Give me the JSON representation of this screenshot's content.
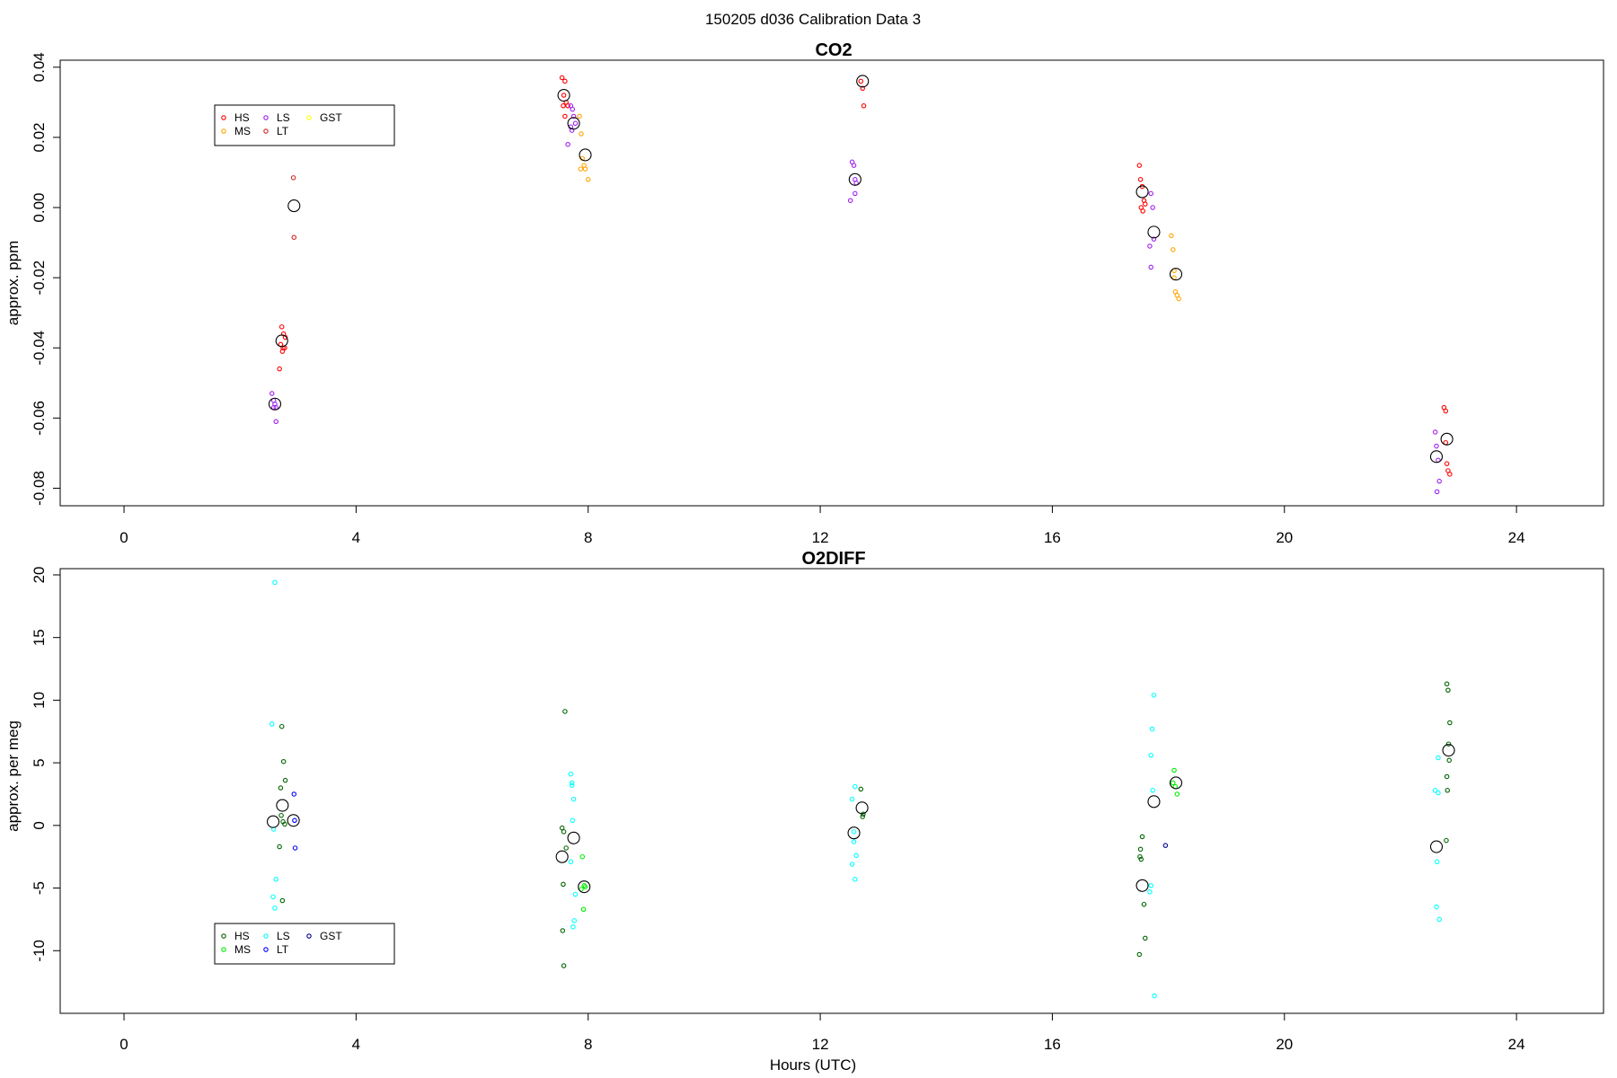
{
  "figure": {
    "suptitle": "150205   d036   Calibration Data 3"
  },
  "chart_data": [
    {
      "type": "scatter",
      "title": "CO2",
      "xlabel": "",
      "ylabel": "approx. ppm",
      "xlim": [
        -1.1,
        25.5
      ],
      "ylim": [
        -0.085,
        0.042
      ],
      "xticks": [
        0,
        4,
        8,
        12,
        16,
        20,
        24
      ],
      "yticks": [
        -0.08,
        -0.06,
        -0.04,
        -0.02,
        0.0,
        0.02,
        0.04
      ],
      "ytick_labels": [
        "-0.08",
        "-0.06",
        "-0.04",
        "-0.02",
        "0.00",
        "0.02",
        "0.04"
      ],
      "legend": {
        "position": "top-left",
        "columns": [
          [
            "HS",
            "MS"
          ],
          [
            "LS",
            "LT"
          ],
          [
            "GST"
          ]
        ],
        "entries": [
          {
            "name": "HS",
            "color": "#ff0000"
          },
          {
            "name": "MS",
            "color": "#ffa500"
          },
          {
            "name": "LS",
            "color": "#a020f0"
          },
          {
            "name": "LT",
            "color": "#cd2626"
          },
          {
            "name": "GST",
            "color": "#ffff00"
          }
        ]
      },
      "series": [
        {
          "name": "HS",
          "color": "#ff0000",
          "x": [
            2.72,
            2.75,
            2.78,
            2.7,
            2.74,
            2.77,
            2.73,
            2.68,
            7.55,
            7.6,
            7.58,
            7.62,
            7.65,
            7.57,
            7.6,
            12.7,
            12.73,
            12.75,
            17.5,
            17.52,
            17.55,
            17.58,
            17.6,
            17.53,
            17.56,
            22.75,
            22.78,
            22.8,
            22.82,
            22.85,
            22.78
          ],
          "y": [
            -0.034,
            -0.036,
            -0.037,
            -0.039,
            -0.04,
            -0.04,
            -0.041,
            -0.046,
            0.037,
            0.036,
            0.032,
            0.03,
            0.029,
            0.029,
            0.026,
            0.036,
            0.034,
            0.029,
            0.012,
            0.008,
            0.006,
            0.002,
            0.001,
            0.0,
            -0.001,
            -0.057,
            -0.058,
            -0.073,
            -0.075,
            -0.076,
            -0.067
          ]
        },
        {
          "name": "MS",
          "color": "#ffa500",
          "x": [
            7.85,
            7.88,
            7.9,
            7.93,
            7.95,
            7.87,
            8.0,
            18.05,
            18.08,
            18.1,
            18.12,
            18.15,
            18.18,
            18.1
          ],
          "y": [
            0.026,
            0.021,
            0.014,
            0.012,
            0.011,
            0.011,
            0.008,
            -0.008,
            -0.012,
            -0.018,
            -0.024,
            -0.025,
            -0.026,
            -0.02
          ]
        },
        {
          "name": "LS",
          "color": "#a020f0",
          "x": [
            2.55,
            2.58,
            2.6,
            2.62,
            2.58,
            2.62,
            7.7,
            7.73,
            7.75,
            7.78,
            7.7,
            7.65,
            7.72,
            12.55,
            12.58,
            12.6,
            12.62,
            12.52,
            12.6,
            17.7,
            17.73,
            17.75,
            17.68,
            17.7,
            22.6,
            22.62,
            22.65,
            22.67,
            22.63
          ],
          "y": [
            -0.053,
            -0.055,
            -0.056,
            -0.057,
            -0.057,
            -0.061,
            0.029,
            0.028,
            0.026,
            0.024,
            0.023,
            0.018,
            0.022,
            0.013,
            0.012,
            0.008,
            0.007,
            0.002,
            0.004,
            0.004,
            0.0,
            -0.009,
            -0.011,
            -0.017,
            -0.064,
            -0.068,
            -0.072,
            -0.078,
            -0.081
          ]
        },
        {
          "name": "LT",
          "color": "#cd2626",
          "x": [
            2.92,
            2.93
          ],
          "y": [
            0.0085,
            -0.0085
          ]
        },
        {
          "name": "GST",
          "color": "#ffff00",
          "x": [],
          "y": []
        }
      ],
      "means": {
        "name": "mean",
        "color": "#000000",
        "x": [
          2.6,
          2.72,
          2.93,
          7.58,
          7.75,
          7.95,
          12.6,
          12.73,
          17.55,
          17.75,
          18.13,
          22.62,
          22.8
        ],
        "y": [
          -0.056,
          -0.038,
          0.0005,
          0.032,
          0.024,
          0.015,
          0.008,
          0.036,
          0.0045,
          -0.007,
          -0.019,
          -0.071,
          -0.066
        ]
      }
    },
    {
      "type": "scatter",
      "title": "O2DIFF",
      "xlabel": "Hours (UTC)",
      "ylabel": "approx. per meg",
      "xlim": [
        -1.1,
        25.5
      ],
      "ylim": [
        -15,
        20.5
      ],
      "xticks": [
        0,
        4,
        8,
        12,
        16,
        20,
        24
      ],
      "yticks": [
        -10,
        -5,
        0,
        5,
        10,
        15,
        20
      ],
      "ytick_labels": [
        "-10",
        "-5",
        "0",
        "5",
        "10",
        "15",
        "20"
      ],
      "legend": {
        "position": "bottom-left",
        "columns": [
          [
            "HS",
            "MS"
          ],
          [
            "LS",
            "LT"
          ],
          [
            "GST"
          ]
        ],
        "entries": [
          {
            "name": "HS",
            "color": "#006400"
          },
          {
            "name": "MS",
            "color": "#00ee00"
          },
          {
            "name": "LS",
            "color": "#00ffff"
          },
          {
            "name": "LT",
            "color": "#0000ff"
          },
          {
            "name": "GST",
            "color": "#00008b"
          }
        ]
      },
      "series": [
        {
          "name": "HS",
          "color": "#006400",
          "x": [
            2.72,
            2.75,
            2.78,
            2.7,
            2.74,
            2.77,
            2.68,
            2.73,
            2.71,
            7.6,
            7.55,
            7.58,
            7.62,
            7.57,
            7.56,
            7.58,
            12.7,
            12.73,
            12.74,
            17.55,
            17.52,
            17.53,
            17.58,
            17.6,
            17.5,
            17.51,
            22.8,
            22.82,
            22.85,
            22.83,
            22.84,
            22.8,
            22.81,
            22.79
          ],
          "y": [
            7.9,
            5.1,
            3.6,
            3.0,
            0.3,
            0.1,
            -1.7,
            -6.0,
            0.8,
            9.1,
            -0.2,
            -0.5,
            -1.8,
            -4.7,
            -8.4,
            -11.2,
            2.9,
            0.7,
            0.9,
            -0.9,
            -1.9,
            -2.7,
            -6.3,
            -9.0,
            -10.3,
            -2.5,
            11.3,
            10.8,
            8.2,
            6.5,
            5.2,
            3.9,
            2.8,
            -1.2
          ]
        },
        {
          "name": "MS",
          "color": "#00ee00",
          "x": [
            7.9,
            7.93,
            7.88,
            7.92,
            7.95,
            18.1,
            18.12,
            18.15,
            18.08
          ],
          "y": [
            -2.5,
            -4.8,
            -5.1,
            -6.7,
            -4.9,
            4.4,
            3.1,
            2.5,
            3.4
          ]
        },
        {
          "name": "LS",
          "color": "#00ffff",
          "x": [
            2.6,
            2.55,
            2.58,
            2.62,
            2.57,
            2.6,
            7.7,
            7.72,
            7.75,
            7.73,
            7.7,
            7.78,
            7.76,
            7.74,
            7.72,
            12.6,
            12.55,
            12.58,
            12.62,
            12.55,
            12.6,
            12.58,
            17.75,
            17.72,
            17.7,
            17.73,
            17.68,
            17.76,
            17.7,
            22.65,
            22.6,
            22.63,
            22.62,
            22.67,
            22.65
          ],
          "y": [
            19.4,
            8.1,
            -0.3,
            -4.3,
            -5.7,
            -6.6,
            4.1,
            3.4,
            2.1,
            0.4,
            -2.9,
            -5.5,
            -7.6,
            -8.1,
            3.2,
            3.1,
            2.1,
            -1.3,
            -2.4,
            -3.1,
            -4.3,
            -0.5,
            10.4,
            7.7,
            5.6,
            2.8,
            -5.3,
            -13.6,
            -4.8,
            5.4,
            2.8,
            -2.9,
            -6.5,
            -7.5,
            2.6
          ]
        },
        {
          "name": "LT",
          "color": "#0000ff",
          "x": [
            2.93,
            2.95,
            2.94
          ],
          "y": [
            2.5,
            -1.8,
            0.4
          ]
        },
        {
          "name": "GST",
          "color": "#00008b",
          "x": [
            17.95
          ],
          "y": [
            -1.6
          ]
        }
      ],
      "means": {
        "name": "mean",
        "color": "#000000",
        "x": [
          2.57,
          2.73,
          2.92,
          7.55,
          7.75,
          7.93,
          12.58,
          12.72,
          17.55,
          17.75,
          18.13,
          22.62,
          22.83
        ],
        "y": [
          0.3,
          1.6,
          0.4,
          -2.5,
          -1.0,
          -4.9,
          -0.6,
          1.4,
          -4.8,
          1.9,
          3.4,
          -1.7,
          6.0
        ]
      }
    }
  ]
}
